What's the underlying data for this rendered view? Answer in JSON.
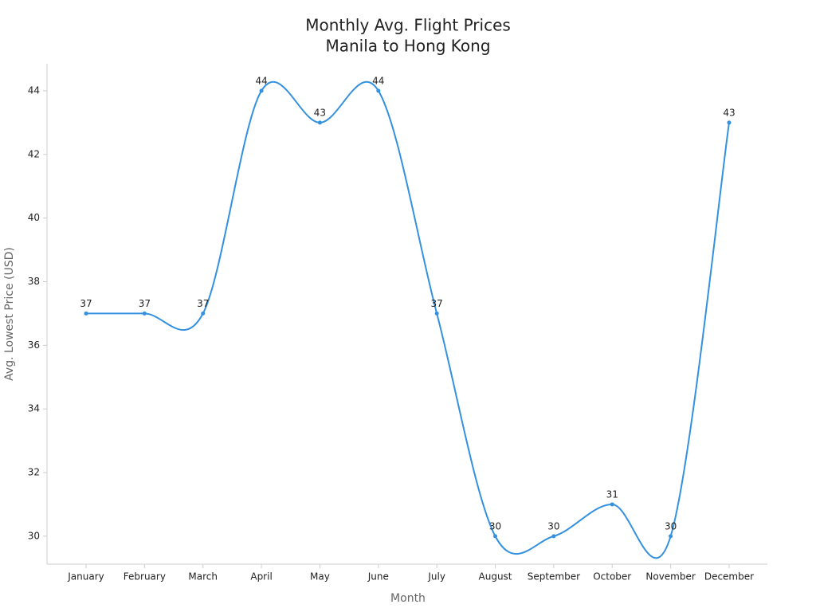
{
  "chart_data": {
    "type": "line",
    "title": "Monthly Avg. Flight Prices",
    "subtitle": "Manila to Hong Kong",
    "x_label": "Month",
    "y_label": "Avg. Lowest Price (USD)",
    "categories": [
      "January",
      "February",
      "March",
      "April",
      "May",
      "June",
      "July",
      "August",
      "September",
      "October",
      "November",
      "December"
    ],
    "series": [
      {
        "name": "Avg. Lowest Price",
        "color": "#3391e0",
        "values": [
          37,
          37,
          37,
          44,
          43,
          44,
          37,
          30,
          30,
          31,
          30,
          43
        ]
      }
    ],
    "ylim": [
      29.12,
      44.85
    ],
    "yticks": [
      30,
      32,
      34,
      36,
      38,
      40,
      42,
      44
    ],
    "smooth": true
  }
}
